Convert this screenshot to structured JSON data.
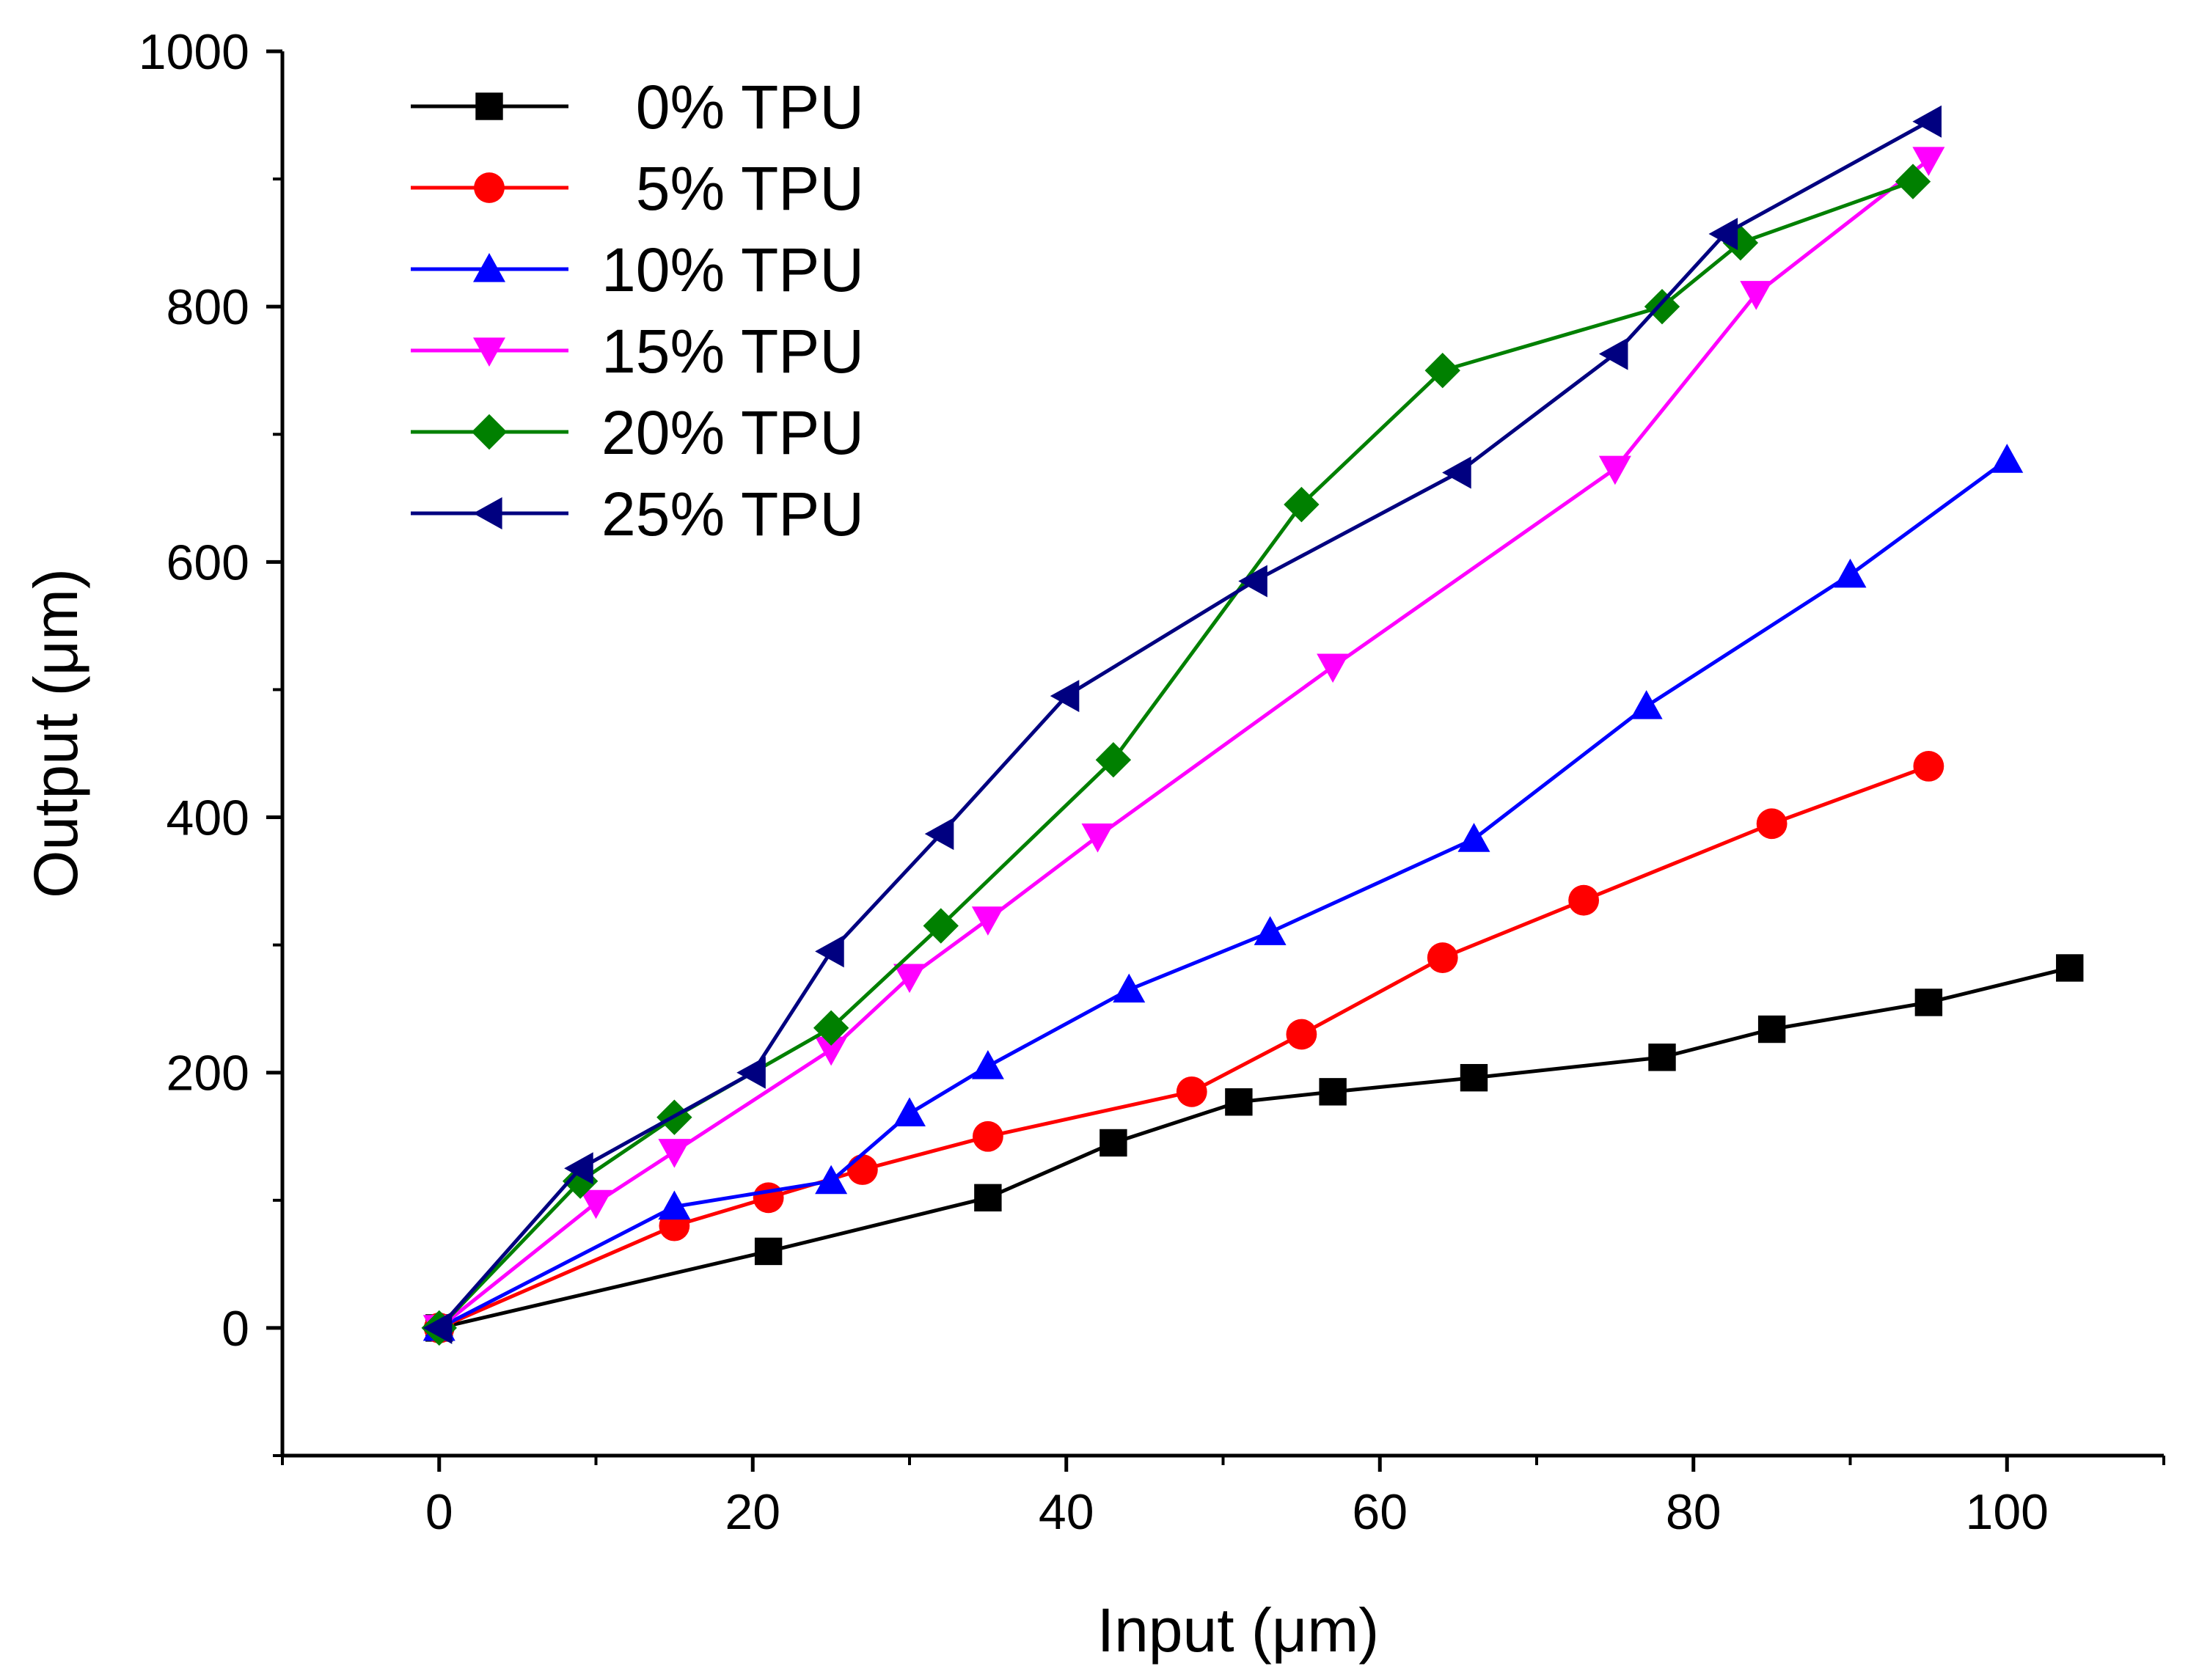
{
  "chart_data": {
    "type": "line",
    "title": "",
    "xlabel": "Input (μm)",
    "ylabel": "Output (μm)",
    "xlim": [
      -10,
      110
    ],
    "ylim": [
      -100,
      1000
    ],
    "xticks": [
      0,
      20,
      40,
      60,
      80,
      100
    ],
    "yticks": [
      0,
      200,
      400,
      600,
      800,
      1000
    ],
    "xtick_labels": [
      "0",
      "20",
      "40",
      "60",
      "80",
      "100"
    ],
    "ytick_labels": [
      "0",
      "200",
      "400",
      "600",
      "800",
      "1000"
    ],
    "grid": false,
    "legend_position": "top-left",
    "series": [
      {
        "name": "0% TPU",
        "color": "#000000",
        "marker": "square",
        "x": [
          0,
          21,
          35,
          43,
          51,
          57,
          66,
          78,
          85,
          95,
          104
        ],
        "y": [
          0,
          60,
          102,
          145,
          177,
          185,
          196,
          212,
          234,
          255,
          282
        ]
      },
      {
        "name": "5% TPU",
        "color": "#ff0000",
        "marker": "circle",
        "x": [
          0,
          15,
          21,
          27,
          35,
          48,
          55,
          64,
          73,
          85,
          95
        ],
        "y": [
          0,
          80,
          102,
          124,
          150,
          185,
          230,
          290,
          335,
          395,
          440
        ]
      },
      {
        "name": "10% TPU",
        "color": "#0000ff",
        "marker": "triangle-up",
        "x": [
          0,
          15,
          25,
          30,
          35,
          44,
          53,
          66,
          77,
          90,
          100
        ],
        "y": [
          0,
          95,
          115,
          168,
          205,
          265,
          310,
          383,
          487,
          590,
          680
        ]
      },
      {
        "name": "15% TPU",
        "color": "#ff00ff",
        "marker": "triangle-down",
        "x": [
          0,
          10,
          15,
          25,
          30,
          35,
          42,
          57,
          75,
          84,
          95
        ],
        "y": [
          0,
          98,
          138,
          218,
          275,
          320,
          385,
          518,
          673,
          810,
          915
        ]
      },
      {
        "name": "20% TPU",
        "color": "#008000",
        "marker": "diamond",
        "x": [
          0,
          9,
          15,
          25,
          32,
          43,
          55,
          64,
          78,
          83,
          94
        ],
        "y": [
          0,
          115,
          165,
          235,
          315,
          445,
          645,
          750,
          800,
          850,
          898
        ]
      },
      {
        "name": "25% TPU",
        "color": "#000080",
        "marker": "triangle-left",
        "x": [
          0,
          9,
          20,
          25,
          32,
          40,
          52,
          65,
          75,
          82,
          95
        ],
        "y": [
          0,
          125,
          200,
          295,
          387,
          495,
          585,
          670,
          763,
          857,
          945
        ]
      }
    ]
  }
}
